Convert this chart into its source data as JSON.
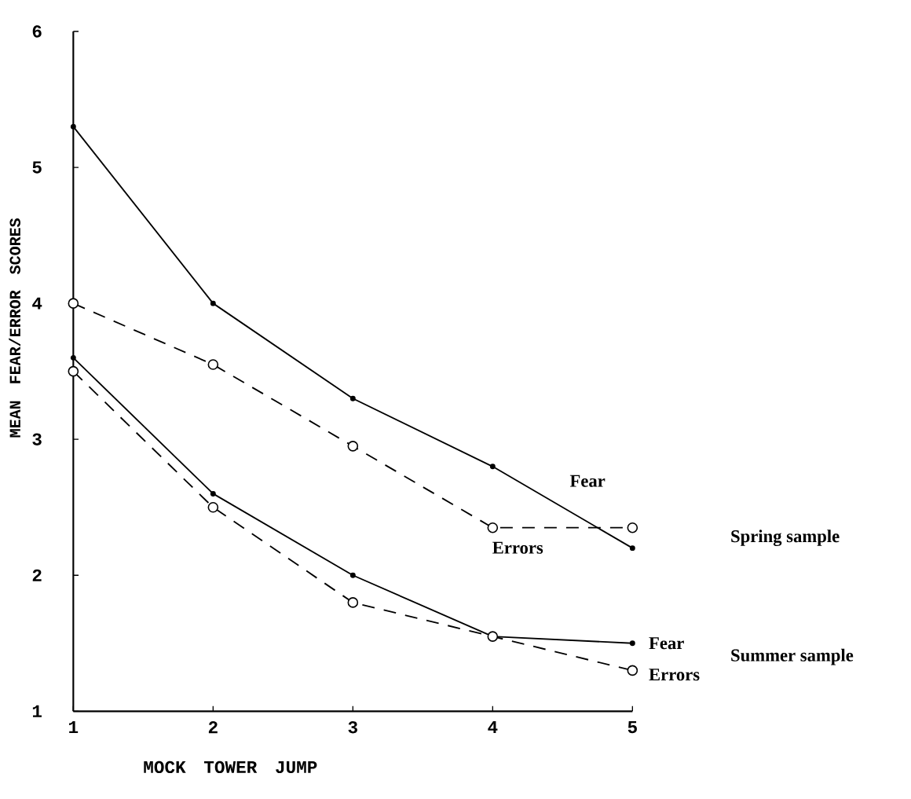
{
  "chart_data": {
    "type": "line",
    "xlabel": "MOCK TOWER JUMP",
    "ylabel": "MEAN FEAR/ERROR SCORES",
    "x": [
      1,
      2,
      3,
      4,
      5
    ],
    "xlim": [
      1,
      5
    ],
    "ylim": [
      1,
      6
    ],
    "xticks": [
      1,
      2,
      3,
      4,
      5
    ],
    "yticks": [
      1,
      2,
      3,
      4,
      5,
      6
    ],
    "marker": "circle",
    "series": [
      {
        "name": "Fear",
        "color": "#000000",
        "line_style": "solid",
        "values": [
          5.3,
          4.0,
          3.3,
          2.8,
          2.2
        ]
      },
      {
        "name": "Errors",
        "color": "#000000",
        "line_style": "dashed",
        "values": [
          4.0,
          3.55,
          2.95,
          2.35,
          2.35
        ]
      },
      {
        "name": "Fear",
        "color": "#000000",
        "line_style": "solid",
        "values": [
          3.6,
          2.6,
          2.0,
          1.55,
          1.5
        ]
      },
      {
        "name": "Errors",
        "color": "#000000",
        "line_style": "dashed",
        "values": [
          3.5,
          2.5,
          1.8,
          1.55,
          1.3
        ]
      }
    ],
    "annotations": [
      "Spring sample",
      "Summer sample"
    ]
  }
}
